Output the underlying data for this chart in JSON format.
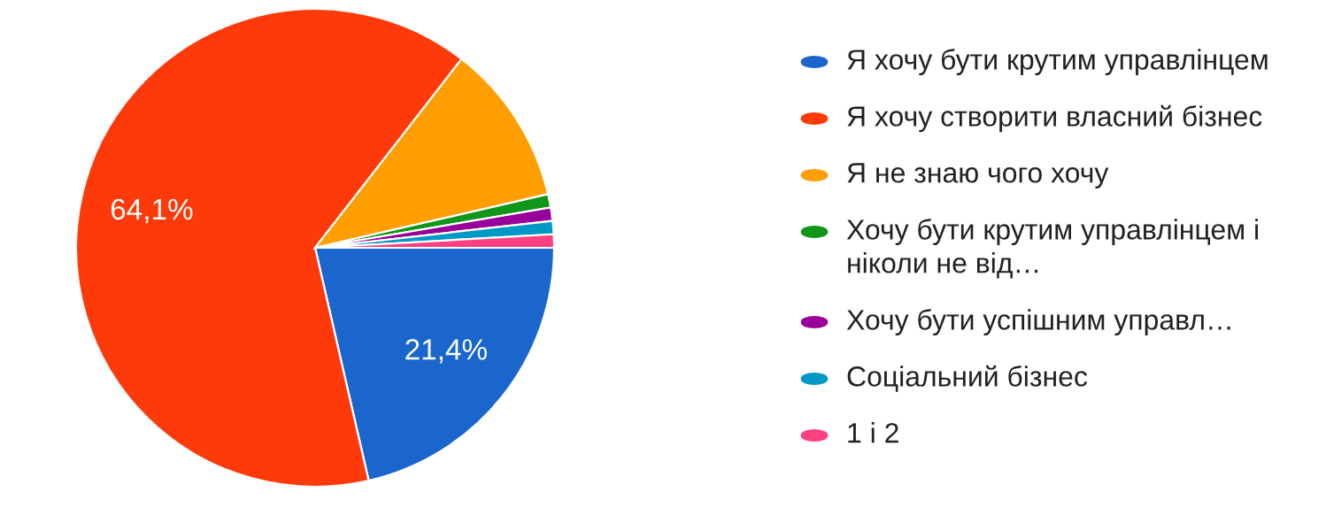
{
  "chart_data": {
    "type": "pie",
    "categories": [
      "Я хочу бути крутим управлінцем",
      "Я хочу створити власний бізнес",
      "Я не знаю чого хочу",
      "Хочу бути крутим управлінцем і ніколи не від…",
      "Хочу бути успішним управл…",
      "Соціальний бізнес",
      "1 і 2"
    ],
    "values": [
      21.4,
      64.1,
      10.9,
      0.9,
      0.9,
      0.9,
      0.9
    ],
    "colors": [
      "#1a66cc",
      "#ff3a0a",
      "#ff9e00",
      "#109618",
      "#990099",
      "#0099c6",
      "#ff4081"
    ],
    "value_labels": [
      "21,4%",
      "64,1%",
      null,
      null,
      null,
      null,
      null
    ],
    "legend": "right"
  }
}
